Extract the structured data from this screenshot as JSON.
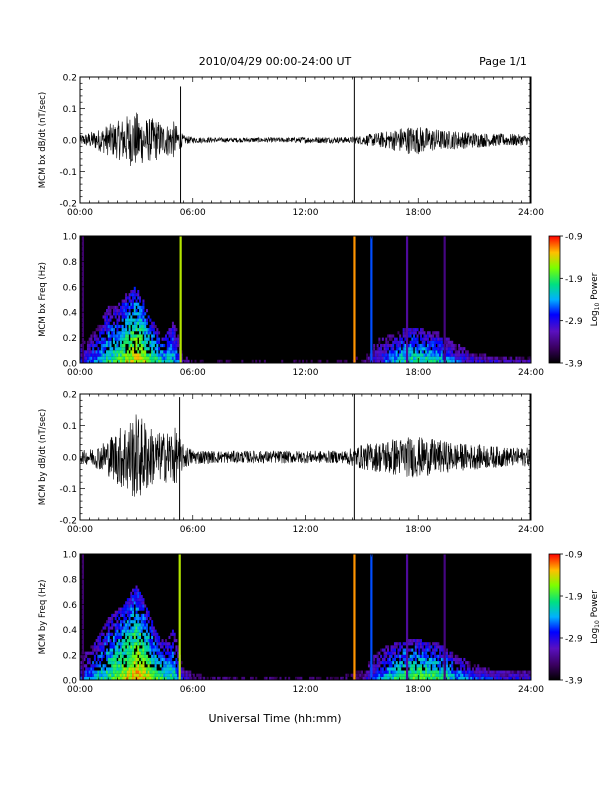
{
  "header": {
    "title": "2010/04/29  00:00-24:00 UT",
    "page": "Page 1/1"
  },
  "xlabel": "Universal Time (hh:mm)",
  "colorbar": {
    "label_main": "Log",
    "label_sub": "10",
    "label_tail": " Power",
    "ticks": [
      "-0.9",
      "-1.9",
      "-2.9",
      "-3.9"
    ]
  },
  "chart_data": [
    {
      "type": "line",
      "title": "",
      "ylabel": "MCM bx dB/dt (nT/sec)",
      "xlim": [
        0,
        24
      ],
      "ylim": [
        -0.2,
        0.2
      ],
      "x_ticks": [
        "00:00",
        "06:00",
        "12:00",
        "18:00",
        "24:00"
      ],
      "y_ticks": [
        "0.2",
        "0.1",
        "0.0",
        "-0.1",
        "-0.2"
      ],
      "envelope": {
        "hours": [
          0,
          0.5,
          1,
          1.5,
          2,
          2.5,
          3,
          3.5,
          4,
          4.5,
          5,
          5.5,
          6,
          7,
          8,
          9,
          10,
          11,
          12,
          13,
          14,
          14.5,
          15,
          16,
          16.5,
          17,
          17.5,
          18,
          18.5,
          19,
          19.5,
          20,
          21,
          22,
          23,
          24
        ],
        "amplitude": [
          0.015,
          0.025,
          0.035,
          0.05,
          0.06,
          0.08,
          0.09,
          0.07,
          0.07,
          0.05,
          0.06,
          0.015,
          0.01,
          0.008,
          0.007,
          0.008,
          0.008,
          0.008,
          0.01,
          0.01,
          0.01,
          0.01,
          0.015,
          0.025,
          0.03,
          0.04,
          0.045,
          0.045,
          0.04,
          0.035,
          0.03,
          0.03,
          0.025,
          0.02,
          0.02,
          0.015
        ]
      },
      "spikes": [
        {
          "hour": 5.35,
          "high": 0.17,
          "low": -0.2
        },
        {
          "hour": 14.6,
          "high": 0.2,
          "low": -0.2
        },
        {
          "hour": 23.95,
          "high": 0.2,
          "low": -0.2
        }
      ]
    },
    {
      "type": "heatmap",
      "title": "",
      "ylabel": "MCM bx Freq (Hz)",
      "xlim": [
        0,
        24
      ],
      "ylim": [
        0,
        1.0
      ],
      "x_ticks": [
        "00:00",
        "06:00",
        "12:00",
        "18:00",
        "24:00"
      ],
      "y_ticks": [
        "1.0",
        "0.8",
        "0.6",
        "0.4",
        "0.2",
        "0.0"
      ],
      "value_range": [
        -3.9,
        -0.9
      ],
      "activity": {
        "hours": [
          0,
          0.5,
          1,
          1.5,
          2,
          2.5,
          3,
          3.5,
          4,
          4.5,
          5,
          5.5,
          6,
          7,
          8,
          9,
          10,
          11,
          12,
          13,
          14,
          15,
          16,
          17,
          17.5,
          18,
          18.5,
          19,
          19.5,
          20,
          21,
          22,
          23,
          24
        ],
        "level": [
          0.35,
          0.4,
          0.5,
          0.6,
          0.65,
          0.75,
          0.85,
          0.75,
          0.65,
          0.55,
          0.55,
          0.2,
          0.1,
          0.05,
          0.05,
          0.05,
          0.05,
          0.05,
          0.05,
          0.05,
          0.05,
          0.1,
          0.35,
          0.55,
          0.6,
          0.6,
          0.6,
          0.55,
          0.5,
          0.4,
          0.3,
          0.25,
          0.2,
          0.2
        ],
        "band_top_hz": [
          0.15,
          0.2,
          0.3,
          0.45,
          0.45,
          0.55,
          0.6,
          0.45,
          0.3,
          0.2,
          0.35,
          0.05,
          0.02,
          0.02,
          0.02,
          0.02,
          0.02,
          0.02,
          0.02,
          0.02,
          0.02,
          0.05,
          0.2,
          0.25,
          0.28,
          0.28,
          0.25,
          0.25,
          0.2,
          0.15,
          0.08,
          0.05,
          0.05,
          0.05
        ]
      },
      "vertical_lines": [
        {
          "hour": 0.15,
          "value": -3.5
        },
        {
          "hour": 5.35,
          "value": -1.5
        },
        {
          "hour": 14.6,
          "value": -1.2
        },
        {
          "hour": 15.5,
          "value": -2.6
        },
        {
          "hour": 17.4,
          "value": -3.3
        },
        {
          "hour": 19.4,
          "value": -3.4
        }
      ]
    },
    {
      "type": "line",
      "title": "",
      "ylabel": "MCM by dB/dt (nT/sec)",
      "xlim": [
        0,
        24
      ],
      "ylim": [
        -0.2,
        0.2
      ],
      "x_ticks": [
        "00:00",
        "06:00",
        "12:00",
        "18:00",
        "24:00"
      ],
      "y_ticks": [
        "0.2",
        "0.1",
        "0.0",
        "-0.1",
        "-0.2"
      ],
      "envelope": {
        "hours": [
          0,
          0.5,
          1,
          1.5,
          2,
          2.5,
          3,
          3.5,
          4,
          4.5,
          5,
          5.5,
          6,
          7,
          8,
          9,
          10,
          11,
          12,
          13,
          14,
          14.5,
          15,
          16,
          16.5,
          17,
          17.5,
          18,
          18.5,
          19,
          19.5,
          20,
          21,
          22,
          23,
          24
        ],
        "amplitude": [
          0.02,
          0.025,
          0.04,
          0.06,
          0.09,
          0.12,
          0.14,
          0.12,
          0.08,
          0.08,
          0.1,
          0.04,
          0.025,
          0.02,
          0.02,
          0.02,
          0.02,
          0.02,
          0.02,
          0.02,
          0.02,
          0.03,
          0.04,
          0.05,
          0.06,
          0.06,
          0.065,
          0.065,
          0.06,
          0.055,
          0.05,
          0.045,
          0.04,
          0.035,
          0.03,
          0.03
        ]
      },
      "spikes": [
        {
          "hour": 5.3,
          "high": 0.19,
          "low": -0.2
        },
        {
          "hour": 14.6,
          "high": 0.2,
          "low": -0.2
        },
        {
          "hour": 23.95,
          "high": 0.2,
          "low": -0.2
        }
      ]
    },
    {
      "type": "heatmap",
      "title": "",
      "ylabel": "MCM by Freq (Hz)",
      "xlim": [
        0,
        24
      ],
      "ylim": [
        0,
        1.0
      ],
      "x_ticks": [
        "00:00",
        "06:00",
        "12:00",
        "18:00",
        "24:00"
      ],
      "y_ticks": [
        "1.0",
        "0.8",
        "0.6",
        "0.4",
        "0.2",
        "0.0"
      ],
      "value_range": [
        -3.9,
        -0.9
      ],
      "activity": {
        "hours": [
          0,
          0.5,
          1,
          1.5,
          2,
          2.5,
          3,
          3.5,
          4,
          4.5,
          5,
          5.5,
          6,
          7,
          8,
          9,
          10,
          11,
          12,
          13,
          14,
          15,
          16,
          17,
          17.5,
          18,
          18.5,
          19,
          19.5,
          20,
          21,
          22,
          23,
          24
        ],
        "level": [
          0.4,
          0.45,
          0.55,
          0.65,
          0.7,
          0.8,
          0.9,
          0.8,
          0.7,
          0.6,
          0.6,
          0.3,
          0.15,
          0.1,
          0.1,
          0.1,
          0.1,
          0.1,
          0.1,
          0.1,
          0.1,
          0.2,
          0.45,
          0.65,
          0.7,
          0.7,
          0.7,
          0.65,
          0.6,
          0.5,
          0.4,
          0.35,
          0.3,
          0.3
        ],
        "band_top_hz": [
          0.2,
          0.25,
          0.35,
          0.5,
          0.55,
          0.65,
          0.75,
          0.6,
          0.4,
          0.3,
          0.4,
          0.1,
          0.05,
          0.03,
          0.03,
          0.03,
          0.03,
          0.03,
          0.03,
          0.03,
          0.03,
          0.08,
          0.25,
          0.3,
          0.32,
          0.32,
          0.3,
          0.3,
          0.25,
          0.2,
          0.12,
          0.08,
          0.08,
          0.08
        ]
      },
      "vertical_lines": [
        {
          "hour": 0.15,
          "value": -3.5
        },
        {
          "hour": 5.3,
          "value": -1.5
        },
        {
          "hour": 14.6,
          "value": -1.2
        },
        {
          "hour": 15.5,
          "value": -2.6
        },
        {
          "hour": 17.4,
          "value": -3.3
        },
        {
          "hour": 19.4,
          "value": -3.4
        }
      ]
    }
  ]
}
